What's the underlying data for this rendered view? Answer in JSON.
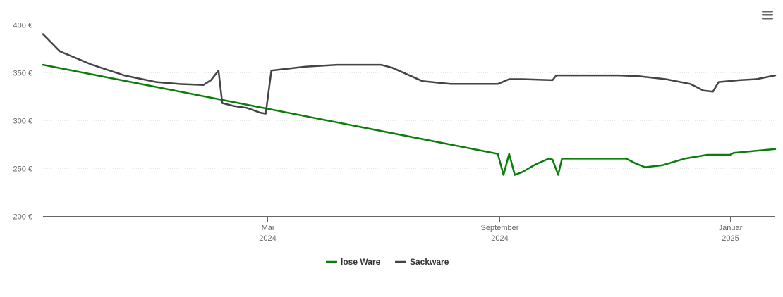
{
  "chart_data": {
    "type": "line",
    "title": "",
    "xlabel": "",
    "ylabel": "",
    "ylim": [
      200,
      400
    ],
    "xlim": [
      "2024-01-03",
      "2025-01-25"
    ],
    "y_ticks": [
      {
        "value": 200,
        "label": "200 €"
      },
      {
        "value": 250,
        "label": "250 €"
      },
      {
        "value": 300,
        "label": "300 €"
      },
      {
        "value": 350,
        "label": "350 €"
      },
      {
        "value": 400,
        "label": "400 €"
      }
    ],
    "x_ticks": [
      {
        "date": "2024-05-01",
        "label": "Mai",
        "sublabel": "2024"
      },
      {
        "date": "2024-09-01",
        "label": "September",
        "sublabel": "2024"
      },
      {
        "date": "2025-01-01",
        "label": "Januar",
        "sublabel": "2025"
      }
    ],
    "grid": true,
    "legend_position": "bottom-center",
    "series": [
      {
        "name": "lose Ware",
        "color": "#0a7d0a",
        "points": [
          [
            "2024-01-03",
            358
          ],
          [
            "2024-08-31",
            265
          ],
          [
            "2024-09-03",
            243
          ],
          [
            "2024-09-06",
            265
          ],
          [
            "2024-09-09",
            243
          ],
          [
            "2024-09-13",
            246
          ],
          [
            "2024-09-20",
            254
          ],
          [
            "2024-09-27",
            260
          ],
          [
            "2024-09-29",
            259
          ],
          [
            "2024-10-02",
            243
          ],
          [
            "2024-10-04",
            260
          ],
          [
            "2024-11-07",
            260
          ],
          [
            "2024-11-12",
            255
          ],
          [
            "2024-11-17",
            251
          ],
          [
            "2024-11-26",
            253
          ],
          [
            "2024-12-08",
            260
          ],
          [
            "2024-12-20",
            264
          ],
          [
            "2025-01-01",
            264
          ],
          [
            "2025-01-03",
            266
          ],
          [
            "2025-01-25",
            270
          ]
        ]
      },
      {
        "name": "Sackware",
        "color": "#434348",
        "points": [
          [
            "2024-01-03",
            390
          ],
          [
            "2024-01-12",
            372
          ],
          [
            "2024-01-29",
            358
          ],
          [
            "2024-02-15",
            347
          ],
          [
            "2024-03-03",
            340
          ],
          [
            "2024-03-15",
            338
          ],
          [
            "2024-03-28",
            337
          ],
          [
            "2024-04-01",
            342
          ],
          [
            "2024-04-05",
            352
          ],
          [
            "2024-04-07",
            318
          ],
          [
            "2024-04-13",
            315
          ],
          [
            "2024-04-20",
            313
          ],
          [
            "2024-04-27",
            308
          ],
          [
            "2024-04-30",
            307
          ],
          [
            "2024-05-03",
            352
          ],
          [
            "2024-05-21",
            356
          ],
          [
            "2024-06-07",
            358
          ],
          [
            "2024-06-22",
            358
          ],
          [
            "2024-06-30",
            358
          ],
          [
            "2024-07-06",
            355
          ],
          [
            "2024-07-14",
            348
          ],
          [
            "2024-07-22",
            341
          ],
          [
            "2024-08-06",
            338
          ],
          [
            "2024-08-31",
            338
          ],
          [
            "2024-09-06",
            343
          ],
          [
            "2024-09-13",
            343
          ],
          [
            "2024-09-29",
            342
          ],
          [
            "2024-10-01",
            347
          ],
          [
            "2024-11-03",
            347
          ],
          [
            "2024-11-14",
            346
          ],
          [
            "2024-11-28",
            343
          ],
          [
            "2024-12-11",
            338
          ],
          [
            "2024-12-18",
            331
          ],
          [
            "2024-12-23",
            330
          ],
          [
            "2024-12-26",
            340
          ],
          [
            "2025-01-06",
            342
          ],
          [
            "2025-01-15",
            343
          ],
          [
            "2025-01-25",
            347
          ]
        ]
      }
    ]
  },
  "toolbar": {
    "menu_icon": "hamburger-menu-icon"
  }
}
